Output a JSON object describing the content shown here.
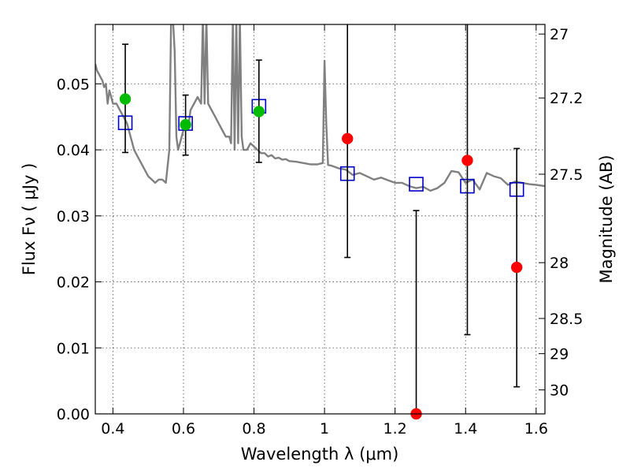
{
  "chart_data": {
    "type": "scatter",
    "xlabel": "Wavelength  λ (μm)",
    "ylabel": "Flux  Fν  ( μJy )",
    "y2label": "Magnitude (AB)",
    "xlim": [
      0.35,
      1.625
    ],
    "ylim": [
      0.0,
      0.059
    ],
    "x_ticks": [
      "0.4",
      "0.6",
      "0.8",
      "1",
      "1.2",
      "1.4",
      "1.6"
    ],
    "x_tick_values": [
      0.4,
      0.6,
      0.8,
      1.0,
      1.2,
      1.4,
      1.6
    ],
    "y_ticks": [
      "0.00",
      "0.01",
      "0.02",
      "0.03",
      "0.04",
      "0.05"
    ],
    "y_tick_values": [
      0.0,
      0.01,
      0.02,
      0.03,
      0.04,
      0.05
    ],
    "y2_ticks": [
      "27",
      "27.2",
      "27.5",
      "28",
      "28.5",
      "29",
      "30"
    ],
    "y2_tick_values": [
      27.0,
      27.2,
      27.5,
      28.0,
      28.5,
      29.0,
      30.0
    ],
    "grid": true,
    "colors": {
      "spectrum": "#808080",
      "model": "#0000cc",
      "detected": "#00bb00",
      "other": "#ff0000",
      "errorbar": "#000000"
    },
    "series": [
      {
        "marker": "open-square",
        "color": "#0000cc",
        "x": [
          0.435,
          0.606,
          0.814,
          1.065,
          1.26,
          1.405,
          1.545
        ],
        "y": [
          0.0441,
          0.044,
          0.0466,
          0.0364,
          0.0348,
          0.0345,
          0.034
        ]
      },
      {
        "marker": "filled-circle",
        "color": "#00bb00",
        "x": [
          0.435,
          0.606,
          0.814
        ],
        "y": [
          0.0477,
          0.0438,
          0.0458
        ],
        "err_low": [
          0.0396,
          0.0392,
          0.0381
        ],
        "err_high": [
          0.056,
          0.0483,
          0.0536
        ]
      },
      {
        "marker": "filled-circle",
        "color": "#ff0000",
        "x": [
          1.065,
          1.26,
          1.405,
          1.545
        ],
        "y": [
          0.0417,
          0.0,
          0.0384,
          0.0222
        ],
        "err_low": [
          0.0237,
          0.0,
          0.012,
          0.0041
        ],
        "err_high": [
          0.07,
          0.0308,
          0.07,
          0.0402
        ]
      }
    ],
    "spectrum": {
      "x": [
        0.35,
        0.355,
        0.36,
        0.365,
        0.37,
        0.375,
        0.38,
        0.385,
        0.39,
        0.395,
        0.4,
        0.41,
        0.42,
        0.43,
        0.44,
        0.45,
        0.46,
        0.47,
        0.48,
        0.49,
        0.5,
        0.51,
        0.52,
        0.53,
        0.54,
        0.55,
        0.56,
        0.565,
        0.57,
        0.575,
        0.58,
        0.585,
        0.59,
        0.595,
        0.6,
        0.605,
        0.61,
        0.615,
        0.62,
        0.63,
        0.64,
        0.65,
        0.655,
        0.66,
        0.665,
        0.67,
        0.68,
        0.69,
        0.7,
        0.71,
        0.72,
        0.73,
        0.735,
        0.74,
        0.745,
        0.75,
        0.755,
        0.76,
        0.765,
        0.77,
        0.78,
        0.79,
        0.8,
        0.81,
        0.82,
        0.83,
        0.84,
        0.85,
        0.86,
        0.87,
        0.88,
        0.89,
        0.9,
        0.92,
        0.94,
        0.96,
        0.98,
        0.995,
        1.0,
        1.005,
        1.01,
        1.02,
        1.04,
        1.06,
        1.08,
        1.1,
        1.12,
        1.14,
        1.16,
        1.18,
        1.2,
        1.22,
        1.24,
        1.26,
        1.28,
        1.3,
        1.32,
        1.34,
        1.36,
        1.38,
        1.4,
        1.42,
        1.44,
        1.46,
        1.48,
        1.5,
        1.52,
        1.54,
        1.56,
        1.58,
        1.6,
        1.625
      ],
      "y": [
        0.053,
        0.052,
        0.0515,
        0.051,
        0.0505,
        0.0495,
        0.05,
        0.047,
        0.049,
        0.048,
        0.047,
        0.047,
        0.046,
        0.045,
        0.044,
        0.042,
        0.04,
        0.039,
        0.038,
        0.037,
        0.036,
        0.0355,
        0.035,
        0.0355,
        0.0355,
        0.035,
        0.04,
        0.06,
        0.06,
        0.055,
        0.042,
        0.04,
        0.041,
        0.042,
        0.043,
        0.043,
        0.043,
        0.044,
        0.046,
        0.047,
        0.048,
        0.047,
        0.06,
        0.047,
        0.06,
        0.047,
        0.046,
        0.045,
        0.044,
        0.043,
        0.042,
        0.042,
        0.041,
        0.06,
        0.04,
        0.06,
        0.041,
        0.06,
        0.042,
        0.04,
        0.04,
        0.041,
        0.0405,
        0.04,
        0.0395,
        0.0395,
        0.039,
        0.0392,
        0.0387,
        0.0388,
        0.0385,
        0.0386,
        0.0383,
        0.0382,
        0.038,
        0.0378,
        0.0378,
        0.038,
        0.0535,
        0.044,
        0.0377,
        0.0376,
        0.0372,
        0.037,
        0.0362,
        0.0365,
        0.036,
        0.0355,
        0.0358,
        0.0354,
        0.035,
        0.035,
        0.0345,
        0.0342,
        0.0344,
        0.0338,
        0.0342,
        0.035,
        0.0368,
        0.0366,
        0.035,
        0.0355,
        0.034,
        0.0365,
        0.036,
        0.0357,
        0.0347,
        0.0352,
        0.035,
        0.0348,
        0.0347,
        0.0345
      ]
    }
  }
}
